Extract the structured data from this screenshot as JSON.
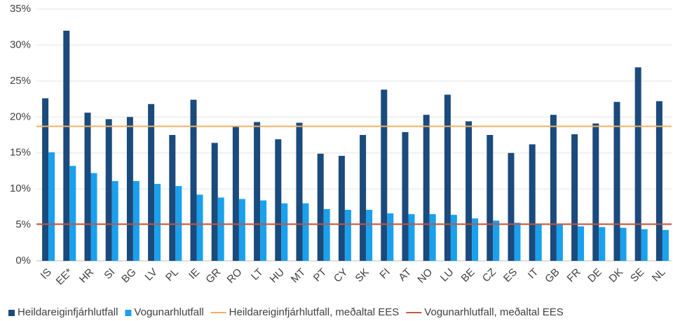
{
  "chart_data": {
    "type": "bar",
    "categories": [
      "IS",
      "EE*",
      "HR",
      "SI",
      "BG",
      "LV",
      "PL",
      "IE",
      "GR",
      "RO",
      "LT",
      "HU",
      "MT",
      "PT",
      "CY",
      "SK",
      "FI",
      "AT",
      "NO",
      "LU",
      "BE",
      "CZ",
      "ES",
      "IT",
      "GB",
      "FR",
      "DE",
      "DK",
      "SE",
      "NL"
    ],
    "series": [
      {
        "name": "Heildareiginfjárhlutfall",
        "color": "#1b4a7c",
        "values": [
          22.6,
          32.0,
          20.6,
          19.7,
          20.0,
          21.8,
          17.5,
          22.4,
          16.4,
          18.7,
          19.3,
          16.9,
          19.2,
          14.9,
          14.6,
          17.5,
          23.8,
          17.9,
          20.3,
          23.1,
          19.4,
          17.5,
          15.0,
          16.2,
          20.3,
          17.6,
          19.1,
          22.1,
          26.9,
          22.2
        ]
      },
      {
        "name": "Vogunarhlutfall",
        "color": "#1aa0ec",
        "values": [
          15.1,
          13.2,
          12.2,
          11.1,
          11.1,
          10.7,
          10.4,
          9.2,
          8.8,
          8.6,
          8.4,
          8.0,
          8.0,
          7.2,
          7.1,
          7.1,
          6.6,
          6.5,
          6.5,
          6.4,
          5.9,
          5.6,
          5.3,
          5.1,
          5.0,
          4.8,
          4.7,
          4.6,
          4.4,
          4.3
        ]
      }
    ],
    "reference_lines": [
      {
        "name": "Heildareiginfjárhlutfall, meðaltal EES",
        "color": "#f0b060",
        "value": 18.7
      },
      {
        "name": "Vogunarhlutfall, meðaltal EES",
        "color": "#c8553d",
        "value": 5.1
      }
    ],
    "ylim": [
      0,
      35
    ],
    "yticks": [
      {
        "value": 0,
        "label": "0%"
      },
      {
        "value": 5,
        "label": "5%"
      },
      {
        "value": 10,
        "label": "10%"
      },
      {
        "value": 15,
        "label": "15%"
      },
      {
        "value": 20,
        "label": "20%"
      },
      {
        "value": 25,
        "label": "25%"
      },
      {
        "value": 30,
        "label": "30%"
      },
      {
        "value": 35,
        "label": "35%"
      }
    ],
    "grid": true,
    "legend": "bottom"
  }
}
